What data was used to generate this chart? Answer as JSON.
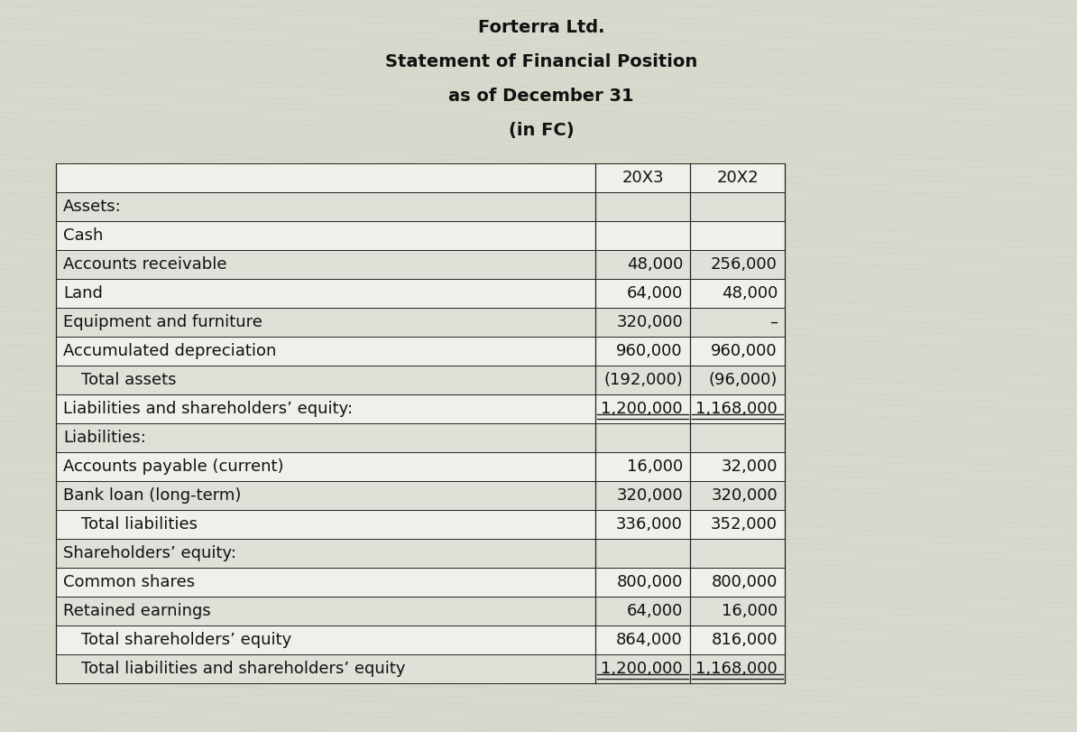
{
  "title_lines": [
    "Forterra Ltd.",
    "Statement of Financial Position",
    "as of December 31",
    "(in FC)"
  ],
  "title_bold": [
    true,
    true,
    true,
    true
  ],
  "bg_color": "#d8d8cc",
  "table_bg_light": "#f0f0ea",
  "table_bg_dark": "#e0e0d8",
  "border_color": "#222222",
  "text_color": "#111111",
  "header_row": [
    "",
    "20X3",
    "20X2"
  ],
  "rows": [
    {
      "label": "Assets:",
      "v1": "",
      "v2": "",
      "indent": false,
      "double_under": false,
      "section_gap_after": false
    },
    {
      "label": "Cash",
      "v1": "",
      "v2": "",
      "indent": false,
      "double_under": false,
      "section_gap_after": false
    },
    {
      "label": "Accounts receivable",
      "v1": "48,000",
      "v2": "256,000",
      "indent": false,
      "double_under": false,
      "section_gap_after": false
    },
    {
      "label": "Land",
      "v1": "64,000",
      "v2": "48,000",
      "indent": false,
      "double_under": false,
      "section_gap_after": false
    },
    {
      "label": "Equipment and furniture",
      "v1": "320,000",
      "v2": "–",
      "indent": false,
      "double_under": false,
      "section_gap_after": false
    },
    {
      "label": "Accumulated depreciation",
      "v1": "960,000",
      "v2": "960,000",
      "indent": false,
      "double_under": false,
      "section_gap_after": false
    },
    {
      "label": "Total assets",
      "v1": "(192,000)",
      "v2": "(96,000)",
      "indent": true,
      "double_under": false,
      "section_gap_after": false
    },
    {
      "label": "Liabilities and shareholders’ equity:",
      "v1": "1,200,000",
      "v2": "1,168,000",
      "indent": false,
      "double_under": true,
      "section_gap_after": false
    },
    {
      "label": "Liabilities:",
      "v1": "",
      "v2": "",
      "indent": false,
      "double_under": false,
      "section_gap_after": false
    },
    {
      "label": "Accounts payable (current)",
      "v1": "16,000",
      "v2": "32,000",
      "indent": false,
      "double_under": false,
      "section_gap_after": false
    },
    {
      "label": "Bank loan (long-term)",
      "v1": "320,000",
      "v2": "320,000",
      "indent": false,
      "double_under": false,
      "section_gap_after": false
    },
    {
      "label": "Total liabilities",
      "v1": "336,000",
      "v2": "352,000",
      "indent": true,
      "double_under": false,
      "section_gap_after": false
    },
    {
      "label": "Shareholders’ equity:",
      "v1": "",
      "v2": "",
      "indent": false,
      "double_under": false,
      "section_gap_after": false
    },
    {
      "label": "Common shares",
      "v1": "800,000",
      "v2": "800,000",
      "indent": false,
      "double_under": false,
      "section_gap_after": false
    },
    {
      "label": "Retained earnings",
      "v1": "64,000",
      "v2": "16,000",
      "indent": false,
      "double_under": false,
      "section_gap_after": false
    },
    {
      "label": "Total shareholders’ equity",
      "v1": "864,000",
      "v2": "816,000",
      "indent": true,
      "double_under": false,
      "section_gap_after": false
    },
    {
      "label": "Total liabilities and shareholders’ equity",
      "v1": "1,200,000",
      "v2": "1,168,000",
      "indent": true,
      "double_under": true,
      "section_gap_after": false
    }
  ],
  "font_size": 13,
  "header_font_size": 13,
  "title_font_size": 14
}
